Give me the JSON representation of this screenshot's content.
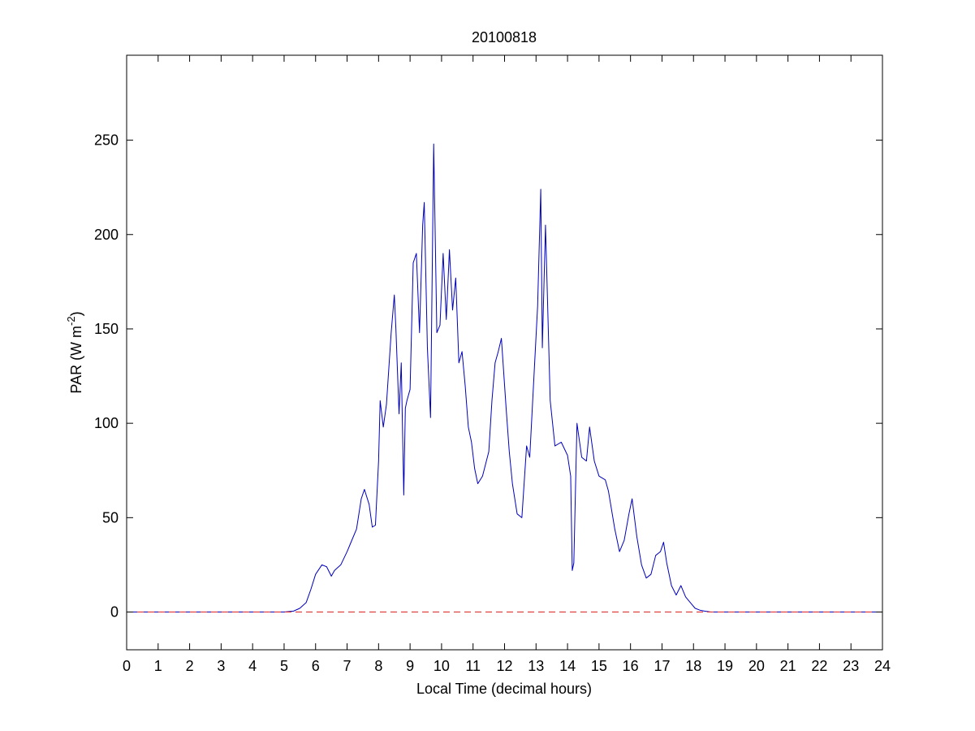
{
  "chart_data": {
    "type": "line",
    "title": "20100818",
    "xlabel": "Local Time (decimal hours)",
    "ylabel": "PAR (W m",
    "ylabel_superscript": "-2",
    "ylabel_suffix": ")",
    "xlim": [
      0,
      24
    ],
    "ylim": [
      -20,
      295
    ],
    "xticks": [
      0,
      1,
      2,
      3,
      4,
      5,
      6,
      7,
      8,
      9,
      10,
      11,
      12,
      13,
      14,
      15,
      16,
      17,
      18,
      19,
      20,
      21,
      22,
      23,
      24
    ],
    "yticks": [
      0,
      50,
      100,
      150,
      200,
      250
    ],
    "grid": false,
    "legend": "none",
    "series": [
      {
        "color": "#0000bb",
        "style": "solid",
        "x": [
          0,
          5.0,
          5.3,
          5.5,
          5.7,
          5.85,
          6.0,
          6.2,
          6.35,
          6.5,
          6.6,
          6.8,
          7.0,
          7.1,
          7.3,
          7.45,
          7.55,
          7.7,
          7.8,
          7.9,
          8.0,
          8.05,
          8.15,
          8.25,
          8.4,
          8.5,
          8.55,
          8.65,
          8.72,
          8.8,
          8.85,
          8.9,
          9.0,
          9.1,
          9.2,
          9.3,
          9.4,
          9.45,
          9.55,
          9.65,
          9.75,
          9.85,
          9.95,
          10.05,
          10.15,
          10.25,
          10.35,
          10.45,
          10.55,
          10.65,
          10.75,
          10.85,
          10.95,
          11.05,
          11.15,
          11.3,
          11.5,
          11.6,
          11.7,
          11.8,
          11.9,
          12.05,
          12.15,
          12.25,
          12.4,
          12.55,
          12.7,
          12.8,
          12.95,
          13.05,
          13.15,
          13.2,
          13.3,
          13.45,
          13.6,
          13.8,
          14.0,
          14.1,
          14.15,
          14.2,
          14.3,
          14.45,
          14.6,
          14.7,
          14.85,
          15.0,
          15.2,
          15.3,
          15.5,
          15.65,
          15.8,
          15.95,
          16.05,
          16.2,
          16.35,
          16.5,
          16.65,
          16.8,
          16.95,
          17.05,
          17.15,
          17.3,
          17.45,
          17.6,
          17.75,
          17.9,
          18.05,
          18.2,
          18.35,
          18.55,
          18.75,
          19.0,
          19.5,
          24
        ],
        "y": [
          0,
          0,
          0.5,
          2,
          5,
          12,
          20,
          25,
          24,
          19,
          22,
          25,
          32,
          36,
          44,
          60,
          65,
          57,
          45,
          46,
          80,
          112,
          98,
          110,
          148,
          168,
          150,
          105,
          132,
          62,
          108,
          112,
          118,
          185,
          190,
          148,
          205,
          217,
          140,
          103,
          248,
          148,
          152,
          190,
          155,
          192,
          160,
          177,
          132,
          138,
          120,
          98,
          90,
          76,
          68,
          72,
          85,
          112,
          132,
          138,
          145,
          108,
          85,
          68,
          52,
          50,
          88,
          82,
          130,
          162,
          224,
          140,
          205,
          112,
          88,
          90,
          83,
          72,
          22,
          26,
          100,
          82,
          80,
          98,
          80,
          72,
          70,
          64,
          44,
          32,
          38,
          52,
          60,
          40,
          25,
          18,
          20,
          30,
          32,
          37,
          26,
          14,
          9,
          14,
          8,
          5,
          2,
          1,
          0.5,
          0,
          0,
          0,
          0,
          0
        ]
      },
      {
        "color": "#dd2222",
        "style": "dashed",
        "x": [
          0,
          24
        ],
        "y": [
          0,
          0
        ]
      }
    ]
  }
}
